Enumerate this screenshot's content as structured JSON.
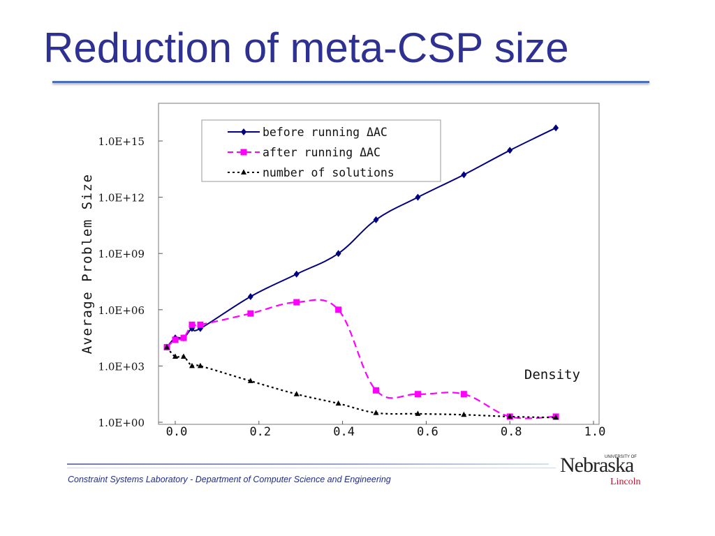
{
  "slide": {
    "title": "Reduction of meta-CSP size",
    "footer": "Constraint Systems Laboratory - Department of Computer Science and Engineering",
    "logo": {
      "wordmark": "Nebraska",
      "top_text": "UNIVERSITY OF",
      "sub": "Lincoln"
    }
  },
  "chart_data": {
    "type": "line",
    "xlabel": "Density",
    "ylabel": "Average Problem Size",
    "xlim": [
      -0.02,
      1.0
    ],
    "y_scale": "log10",
    "ylim_exp": [
      0,
      16.5
    ],
    "x_ticks": [
      "0.0",
      "0.2",
      "0.4",
      "0.6",
      "0.8",
      "1.0"
    ],
    "x_tick_values": [
      0.0,
      0.2,
      0.4,
      0.6,
      0.8,
      1.0
    ],
    "y_ticks": [
      "1.0E+00",
      "1.0E+03",
      "1.0E+06",
      "1.0E+09",
      "1.0E+12",
      "1.0E+15"
    ],
    "y_tick_exps": [
      0,
      3,
      6,
      9,
      12,
      15
    ],
    "legend_position": "top-left",
    "series": [
      {
        "name": "before running ΔAC",
        "color": "#000080",
        "dash": "solid",
        "marker": "diamond",
        "x": [
          -0.02,
          0.0,
          0.02,
          0.04,
          0.06,
          0.18,
          0.29,
          0.39,
          0.48,
          0.58,
          0.69,
          0.8,
          0.91
        ],
        "y_exp": [
          4.0,
          4.5,
          4.5,
          5.0,
          5.0,
          6.7,
          7.9,
          9.0,
          10.8,
          12.0,
          13.2,
          14.5,
          15.7
        ]
      },
      {
        "name": "after running ΔAC",
        "color": "#ff00ff",
        "dash": "dashed",
        "marker": "square",
        "x": [
          -0.02,
          0.0,
          0.02,
          0.04,
          0.06,
          0.18,
          0.29,
          0.39,
          0.48,
          0.58,
          0.69,
          0.8,
          0.91
        ],
        "y_exp": [
          4.0,
          4.4,
          4.5,
          5.2,
          5.2,
          5.8,
          6.4,
          6.0,
          1.7,
          1.5,
          1.5,
          0.3,
          0.3
        ]
      },
      {
        "name": "number of solutions",
        "color": "#000000",
        "dash": "dotted",
        "marker": "triangle",
        "x": [
          -0.02,
          0.0,
          0.02,
          0.04,
          0.06,
          0.18,
          0.29,
          0.39,
          0.48,
          0.58,
          0.69,
          0.8,
          0.91
        ],
        "y_exp": [
          4.0,
          3.5,
          3.5,
          3.0,
          3.0,
          2.2,
          1.5,
          1.0,
          0.5,
          0.45,
          0.4,
          0.3,
          0.25
        ]
      }
    ]
  }
}
